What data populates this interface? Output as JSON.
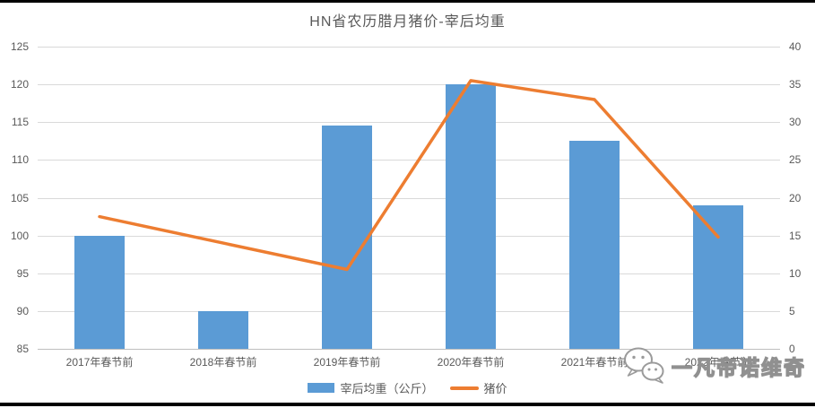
{
  "chart_data": {
    "type": "bar",
    "title": "HN省农历腊月猪价-宰后均重",
    "categories": [
      "2017年春节前",
      "2018年春节前",
      "2019年春节前",
      "2020年春节前",
      "2021年春节前",
      "2022年春节前"
    ],
    "series": [
      {
        "name": "宰后均重（公斤）",
        "type": "bar",
        "axis": "left",
        "values": [
          100,
          90,
          114.5,
          120,
          112.5,
          104
        ]
      },
      {
        "name": "猪价",
        "type": "line",
        "axis": "right",
        "values": [
          17.5,
          14,
          10.5,
          35.5,
          33,
          14.8
        ]
      }
    ],
    "left_axis": {
      "min": 85,
      "max": 125,
      "step": 5,
      "ticks": [
        "85",
        "90",
        "95",
        "100",
        "105",
        "110",
        "115",
        "120",
        "125"
      ]
    },
    "right_axis": {
      "min": 0,
      "max": 40,
      "step": 5,
      "ticks": [
        "0",
        "5",
        "10",
        "15",
        "20",
        "25",
        "30",
        "35",
        "40"
      ]
    },
    "grid": true,
    "legend_position": "bottom"
  },
  "legend": {
    "items": [
      {
        "label": "宰后均重（公斤）",
        "shape": "rect",
        "color": "#5B9BD5"
      },
      {
        "label": "猪价",
        "shape": "line",
        "color": "#ED7D31"
      }
    ]
  },
  "watermark": {
    "icon": "wechat-icon",
    "text": "一凡帝诺维奇"
  },
  "colors": {
    "bar": "#5B9BD5",
    "line": "#ED7D31",
    "grid": "#D9D9D9",
    "baseline": "#BFBFBF",
    "axis_text": "#595959",
    "title_text": "#595959",
    "rule": "#000000"
  }
}
